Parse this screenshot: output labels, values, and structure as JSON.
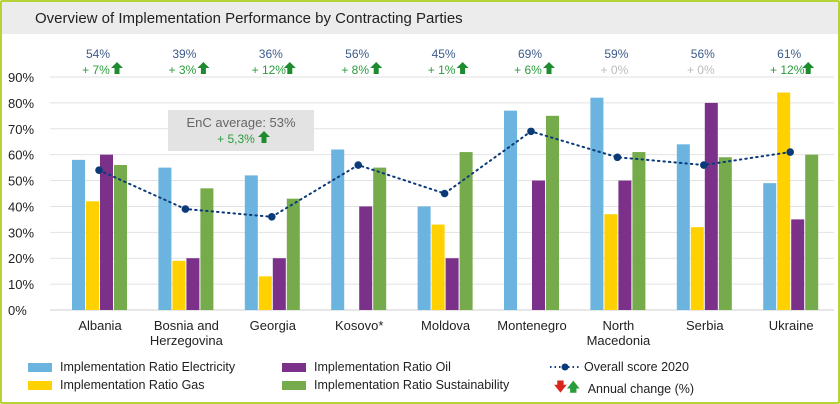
{
  "chart_data": {
    "type": "bar",
    "title": "Overview of Implementation Performance by Contracting Parties",
    "categories": [
      "Albania",
      "Bosnia and Herzegovina",
      "Georgia",
      "Kosovo*",
      "Moldova",
      "Montenegro",
      "North Macedonia",
      "Serbia",
      "Ukraine"
    ],
    "category_lines": [
      [
        "Albania"
      ],
      [
        "Bosnia and",
        "Herzegovina"
      ],
      [
        "Georgia"
      ],
      [
        "Kosovo*"
      ],
      [
        "Moldova"
      ],
      [
        "Montenegro"
      ],
      [
        "North",
        "Macedonia"
      ],
      [
        "Serbia"
      ],
      [
        "Ukraine"
      ]
    ],
    "series": [
      {
        "name": "Implementation Ratio Electricity",
        "color": "#6cb4e0",
        "values": [
          58,
          55,
          52,
          62,
          40,
          77,
          82,
          64,
          49
        ]
      },
      {
        "name": "Implementation Ratio Gas",
        "color": "#ffd100",
        "values": [
          42,
          19,
          13,
          0,
          33,
          0,
          37,
          32,
          84
        ]
      },
      {
        "name": "Implementation Ratio Oil",
        "color": "#7b318a",
        "values": [
          60,
          20,
          20,
          40,
          20,
          50,
          50,
          80,
          35
        ]
      },
      {
        "name": "Implementation Ratio Sustainability",
        "color": "#76ab4c",
        "values": [
          56,
          47,
          43,
          55,
          61,
          75,
          61,
          59,
          60
        ]
      }
    ],
    "line": {
      "name": "Overall score 2020",
      "color": "#0b3a79",
      "values": [
        54,
        39,
        36,
        56,
        45,
        69,
        59,
        56,
        61
      ]
    },
    "score_labels": [
      "54%",
      "39%",
      "36%",
      "56%",
      "45%",
      "69%",
      "59%",
      "56%",
      "61%"
    ],
    "change_labels": [
      "+ 7%",
      "+ 3%",
      "+ 12%",
      "+ 8%",
      "+ 1%",
      "+ 6%",
      "+ 0%",
      "+ 0%",
      "+ 12%"
    ],
    "change_up": [
      true,
      true,
      true,
      true,
      true,
      true,
      false,
      false,
      true
    ],
    "yticks": [
      "0%",
      "10%",
      "20%",
      "30%",
      "40%",
      "50%",
      "60%",
      "70%",
      "80%",
      "90%"
    ],
    "ylim": [
      0,
      90
    ],
    "annotation": {
      "text": "EnC average: 53%",
      "change": "+ 5,3%"
    },
    "legend_change": "Annual change (%)",
    "grid": true,
    "legend_position": "bottom"
  }
}
